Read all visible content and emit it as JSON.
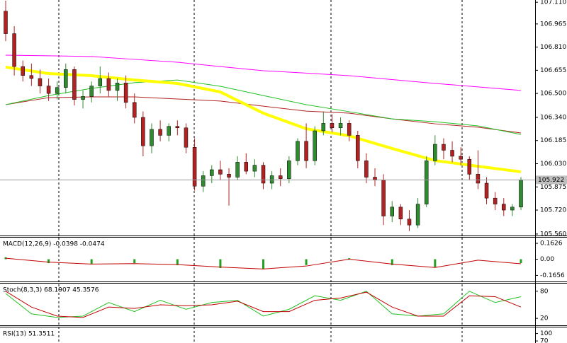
{
  "chart_data": [
    {
      "type": "candlestick",
      "ylim": [
        105.55,
        107.125
      ],
      "yticks": [
        {
          "value": 107.11,
          "label": "107.110"
        },
        {
          "value": 106.965,
          "label": "106.965"
        },
        {
          "value": 106.81,
          "label": "106.810"
        },
        {
          "value": 106.655,
          "label": "106.655"
        },
        {
          "value": 106.5,
          "label": "106.500"
        },
        {
          "value": 106.34,
          "label": "106.340"
        },
        {
          "value": 106.185,
          "label": "106.185"
        },
        {
          "value": 106.03,
          "label": "106.030"
        },
        {
          "value": 105.875,
          "label": "105.875"
        },
        {
          "value": 105.72,
          "label": "105.720"
        },
        {
          "value": 105.56,
          "label": "105.560"
        }
      ],
      "current_price": {
        "value": 105.922,
        "label": "105.922"
      },
      "up_color": "#2e8b2e",
      "down_color": "#b22222",
      "ohlc": [
        [
          107.05,
          107.12,
          106.85,
          106.9
        ],
        [
          106.9,
          106.95,
          106.62,
          106.68
        ],
        [
          106.68,
          106.72,
          106.58,
          106.62
        ],
        [
          106.62,
          106.7,
          106.55,
          106.6
        ],
        [
          106.6,
          106.66,
          106.5,
          106.55
        ],
        [
          106.55,
          106.6,
          106.45,
          106.5
        ],
        [
          106.5,
          106.58,
          106.46,
          106.54
        ],
        [
          106.54,
          106.7,
          106.5,
          106.66
        ],
        [
          106.66,
          106.68,
          106.42,
          106.46
        ],
        [
          106.46,
          106.52,
          106.4,
          106.48
        ],
        [
          106.48,
          106.58,
          106.44,
          106.55
        ],
        [
          106.55,
          106.68,
          106.5,
          106.6
        ],
        [
          106.6,
          106.64,
          106.48,
          106.52
        ],
        [
          106.52,
          106.6,
          106.45,
          106.57
        ],
        [
          106.57,
          106.62,
          106.4,
          106.44
        ],
        [
          106.44,
          106.5,
          106.3,
          106.34
        ],
        [
          106.34,
          106.38,
          106.08,
          106.15
        ],
        [
          106.15,
          106.3,
          106.1,
          106.26
        ],
        [
          106.26,
          106.32,
          106.18,
          106.22
        ],
        [
          106.22,
          106.3,
          106.18,
          106.28
        ],
        [
          106.28,
          106.32,
          106.22,
          106.27
        ],
        [
          106.27,
          106.3,
          106.1,
          106.14
        ],
        [
          106.14,
          106.2,
          105.85,
          105.88
        ],
        [
          105.88,
          105.98,
          105.84,
          105.95
        ],
        [
          105.95,
          106.02,
          105.9,
          105.99
        ],
        [
          105.99,
          106.05,
          105.92,
          105.96
        ],
        [
          105.96,
          106.0,
          105.75,
          105.94
        ],
        [
          105.94,
          106.08,
          105.92,
          106.04
        ],
        [
          106.04,
          106.1,
          105.96,
          105.98
        ],
        [
          105.98,
          106.06,
          105.94,
          106.02
        ],
        [
          106.02,
          106.04,
          105.86,
          105.9
        ],
        [
          105.9,
          105.98,
          105.86,
          105.95
        ],
        [
          105.95,
          106.0,
          105.88,
          105.93
        ],
        [
          105.93,
          106.08,
          105.9,
          106.05
        ],
        [
          106.05,
          106.2,
          106.02,
          106.18
        ],
        [
          106.18,
          106.3,
          106.0,
          106.05
        ],
        [
          106.05,
          106.28,
          106.02,
          106.25
        ],
        [
          106.25,
          106.38,
          106.22,
          106.3
        ],
        [
          106.3,
          106.36,
          106.24,
          106.27
        ],
        [
          106.27,
          106.34,
          106.22,
          106.3
        ],
        [
          106.3,
          106.32,
          106.18,
          106.22
        ],
        [
          106.22,
          106.25,
          106.0,
          106.05
        ],
        [
          106.05,
          106.1,
          105.9,
          105.94
        ],
        [
          105.94,
          106.0,
          105.88,
          105.92
        ],
        [
          105.92,
          105.96,
          105.62,
          105.68
        ],
        [
          105.68,
          105.78,
          105.64,
          105.74
        ],
        [
          105.74,
          105.76,
          105.62,
          105.66
        ],
        [
          105.66,
          105.72,
          105.58,
          105.62
        ],
        [
          105.62,
          105.8,
          105.6,
          105.76
        ],
        [
          105.76,
          106.08,
          105.74,
          106.05
        ],
        [
          106.05,
          106.22,
          106.02,
          106.16
        ],
        [
          106.16,
          106.2,
          106.06,
          106.12
        ],
        [
          106.12,
          106.18,
          106.04,
          106.08
        ],
        [
          106.08,
          106.14,
          106.02,
          106.06
        ],
        [
          106.06,
          106.08,
          105.92,
          105.96
        ],
        [
          105.96,
          106.12,
          105.86,
          105.9
        ],
        [
          105.9,
          105.94,
          105.76,
          105.8
        ],
        [
          105.8,
          105.84,
          105.72,
          105.76
        ],
        [
          105.76,
          105.8,
          105.68,
          105.72
        ],
        [
          105.72,
          105.76,
          105.68,
          105.74
        ],
        [
          105.74,
          105.94,
          105.72,
          105.92
        ]
      ],
      "line_x": [
        0,
        5,
        10,
        15,
        20,
        25,
        30,
        35,
        40,
        45,
        50,
        55,
        60
      ],
      "lines": [
        {
          "color": "#ff00ff",
          "width": 1,
          "values": [
            106.756,
            106.752,
            106.747,
            106.728,
            106.709,
            106.68,
            106.652,
            106.636,
            106.619,
            106.593,
            106.567,
            106.544,
            106.52
          ]
        },
        {
          "color": "#b22222",
          "width": 1,
          "values": [
            106.425,
            106.472,
            106.477,
            106.477,
            106.463,
            106.449,
            106.415,
            106.382,
            106.368,
            106.33,
            106.297,
            106.274,
            106.236
          ]
        },
        {
          "color": "#22c022",
          "width": 1,
          "values": [
            106.425,
            106.486,
            106.534,
            106.572,
            106.59,
            106.548,
            106.486,
            106.425,
            106.378,
            106.33,
            106.311,
            106.283,
            106.226
          ]
        },
        {
          "color": "#ffff00",
          "width": 4,
          "values": [
            106.676,
            106.633,
            106.619,
            106.59,
            106.567,
            106.51,
            106.368,
            106.264,
            106.217,
            106.132,
            106.051,
            106.013,
            105.976
          ]
        }
      ]
    },
    {
      "type": "macd",
      "title": "MACD(12,26,9) -0.0398 -0.0474",
      "ylim": [
        -0.228,
        0.221
      ],
      "yticks": [
        0.1626,
        {
          "value": 0,
          "label": "0.00"
        },
        -0.1656
      ],
      "x": [
        0,
        5,
        10,
        15,
        20,
        25,
        30,
        35,
        40,
        45,
        50,
        55,
        60
      ],
      "series": [
        {
          "color": "#22a022",
          "values": [
            0.02,
            -0.04,
            -0.05,
            -0.04,
            -0.06,
            -0.09,
            -0.1,
            -0.06,
            0.01,
            -0.06,
            -0.08,
            0.0,
            -0.04
          ]
        },
        {
          "color": "#c00000",
          "values": [
            0.01,
            -0.03,
            -0.05,
            -0.045,
            -0.055,
            -0.08,
            -0.1,
            -0.07,
            0.0,
            -0.05,
            -0.085,
            -0.01,
            -0.047
          ]
        }
      ]
    },
    {
      "type": "line",
      "title": "Stoch(8,3,3) 68.1907 45.3576",
      "ylim": [
        4.6,
        96.9
      ],
      "yticks": [
        80,
        20
      ],
      "x": [
        0,
        3,
        6,
        9,
        12,
        15,
        18,
        21,
        24,
        27,
        30,
        33,
        36,
        39,
        42,
        45,
        48,
        51,
        54,
        57,
        60
      ],
      "series": [
        {
          "color": "#22c022",
          "values": [
            75,
            30,
            22,
            25,
            55,
            35,
            60,
            40,
            55,
            60,
            25,
            40,
            70,
            60,
            80,
            30,
            25,
            30,
            80,
            55,
            68
          ]
        },
        {
          "color": "#c00000",
          "values": [
            80,
            45,
            25,
            22,
            45,
            42,
            50,
            48,
            50,
            58,
            35,
            35,
            60,
            65,
            78,
            45,
            25,
            25,
            70,
            68,
            45
          ]
        }
      ]
    },
    {
      "type": "line",
      "title": "RSI(13) 51.3511",
      "ylim": [
        61.8,
        124.5
      ],
      "yticks": [
        100,
        70
      ]
    }
  ]
}
